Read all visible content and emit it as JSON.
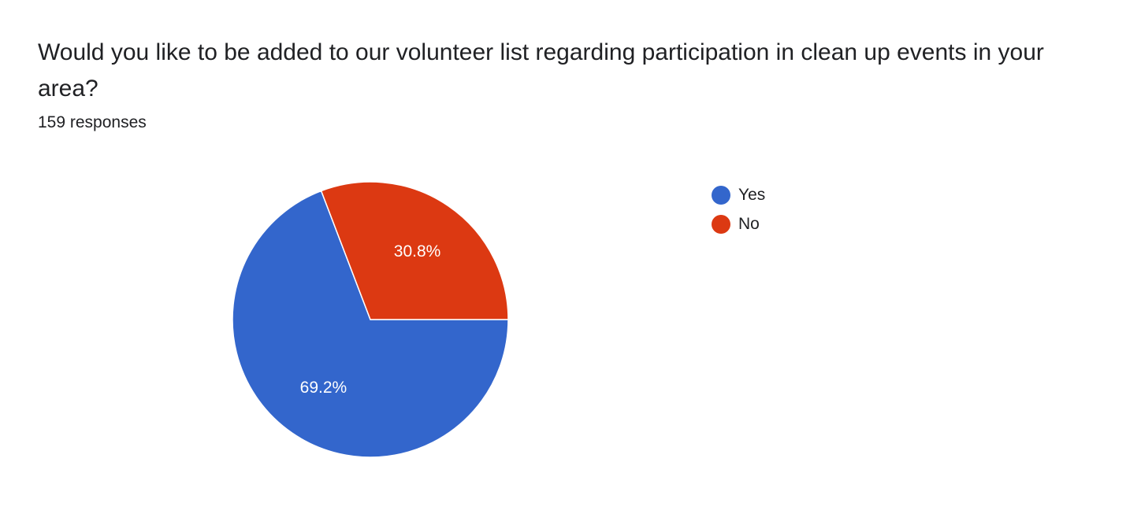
{
  "question": {
    "title": "Would you like to be added to our volunteer list regarding participation in clean up events in your area?",
    "responses": "159 responses"
  },
  "chart_data": {
    "type": "pie",
    "categories": [
      "Yes",
      "No"
    ],
    "values": [
      69.2,
      30.8
    ],
    "labels": [
      "69.2%",
      "30.8%"
    ],
    "colors": [
      "#3366cc",
      "#dc3912"
    ],
    "legend_position": "right"
  }
}
